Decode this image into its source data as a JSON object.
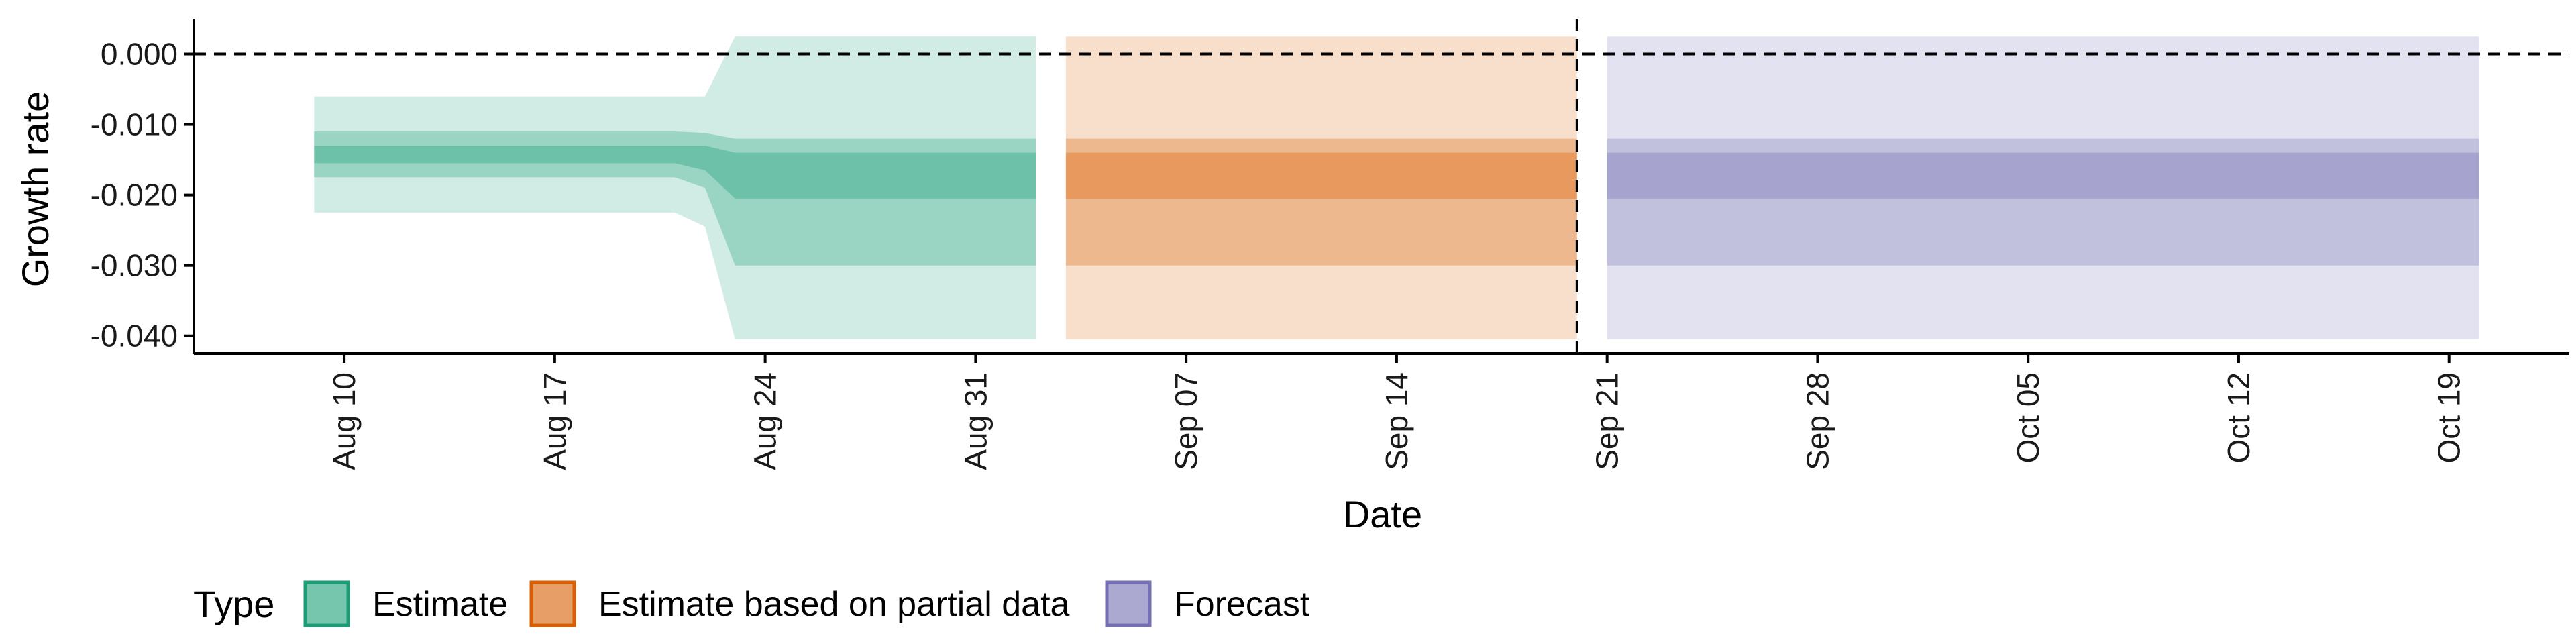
{
  "chart_data": {
    "type": "area",
    "title": "",
    "xlabel": "Date",
    "ylabel": "Growth rate",
    "x_ticks": [
      "Aug 10",
      "Aug 17",
      "Aug 24",
      "Aug 31",
      "Sep 07",
      "Sep 14",
      "Sep 21",
      "Sep 28",
      "Oct 05",
      "Oct 12",
      "Oct 19"
    ],
    "y_ticks": [
      "0.000",
      "-0.010",
      "-0.020",
      "-0.030",
      "-0.040"
    ],
    "ylim": [
      -0.0425,
      0.005
    ],
    "xlim": [
      "2021-08-05",
      "2021-10-23"
    ],
    "reference_lines": {
      "horizontal_y": 0.0,
      "vertical_date": "2021-09-20"
    },
    "legend": {
      "title": "Type",
      "position": "bottom-left",
      "entries": [
        "Estimate",
        "Estimate based on partial data",
        "Forecast"
      ]
    },
    "colors": {
      "Estimate": "#1b9e77",
      "Estimate based on partial data": "#d95f02",
      "Forecast": "#7570b3"
    },
    "series": [
      {
        "name": "Estimate",
        "x": [
          "2021-08-09",
          "2021-08-21",
          "2021-08-22",
          "2021-08-23",
          "2021-09-02"
        ],
        "ci90_lower": [
          -0.0225,
          -0.0225,
          -0.0245,
          -0.0405,
          -0.0405
        ],
        "ci90_upper": [
          -0.006,
          -0.006,
          -0.006,
          0.0025,
          0.0025
        ],
        "ci50_lower": [
          -0.0175,
          -0.0175,
          -0.019,
          -0.03,
          -0.03
        ],
        "ci50_upper": [
          -0.011,
          -0.011,
          -0.0112,
          -0.012,
          -0.012
        ],
        "ci20_lower": [
          -0.0155,
          -0.0155,
          -0.0165,
          -0.0205,
          -0.0205
        ],
        "ci20_upper": [
          -0.013,
          -0.013,
          -0.013,
          -0.014,
          -0.014
        ]
      },
      {
        "name": "Estimate based on partial data",
        "x": [
          "2021-09-03",
          "2021-09-20"
        ],
        "ci90_lower": [
          -0.0405,
          -0.0405
        ],
        "ci90_upper": [
          0.0025,
          0.0025
        ],
        "ci50_lower": [
          -0.03,
          -0.03
        ],
        "ci50_upper": [
          -0.012,
          -0.012
        ],
        "ci20_lower": [
          -0.0205,
          -0.0205
        ],
        "ci20_upper": [
          -0.014,
          -0.014
        ]
      },
      {
        "name": "Forecast",
        "x": [
          "2021-09-21",
          "2021-10-20"
        ],
        "ci90_lower": [
          -0.0405,
          -0.0405
        ],
        "ci90_upper": [
          0.0025,
          0.0025
        ],
        "ci50_lower": [
          -0.03,
          -0.03
        ],
        "ci50_upper": [
          -0.012,
          -0.012
        ],
        "ci20_lower": [
          -0.0205,
          -0.0205
        ],
        "ci20_upper": [
          -0.014,
          -0.014
        ]
      }
    ]
  }
}
